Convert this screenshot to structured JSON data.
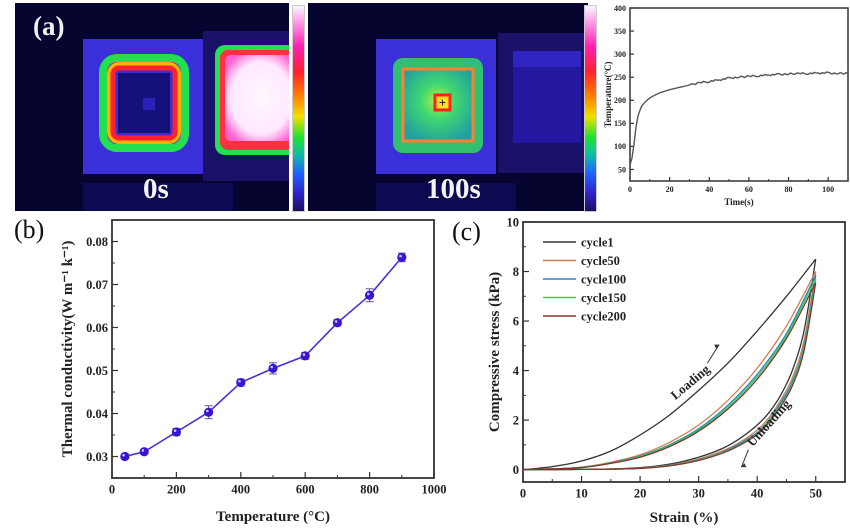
{
  "panel_a": {
    "label": "(a)",
    "images": [
      {
        "time_label": "0s"
      },
      {
        "time_label": "100s"
      }
    ],
    "colorbar_label": "Temperature(°C)"
  },
  "panel_b": {
    "label": "(b)"
  },
  "panel_c": {
    "label": "(c)"
  },
  "chart_data": [
    {
      "id": "temperature-time",
      "type": "line",
      "title": "",
      "xlabel": "Time(s)",
      "ylabel": "Temperature(°C)",
      "xlim": [
        0,
        110
      ],
      "ylim": [
        25,
        400
      ],
      "xticks": [
        0,
        20,
        40,
        60,
        80,
        100
      ],
      "yticks": [
        50,
        100,
        150,
        200,
        250,
        300,
        350,
        400
      ],
      "series": [
        {
          "name": "temperature",
          "color": "#555555",
          "x": [
            0,
            1,
            2,
            3,
            4,
            5,
            6,
            8,
            10,
            12,
            15,
            20,
            25,
            30,
            35,
            40,
            45,
            50,
            55,
            60,
            65,
            70,
            75,
            80,
            85,
            90,
            95,
            100,
            105,
            110
          ],
          "y": [
            60,
            75,
            105,
            140,
            165,
            178,
            188,
            198,
            205,
            210,
            216,
            223,
            228,
            233,
            238,
            241,
            244,
            248,
            250,
            252,
            253,
            255,
            256,
            257,
            258,
            258,
            259,
            259,
            258,
            259
          ]
        }
      ]
    },
    {
      "id": "thermal-conductivity",
      "type": "line",
      "title": "",
      "xlabel": "Temperature (°C)",
      "ylabel": "Thermal conductivity(W m⁻¹ k⁻¹)",
      "xlim": [
        0,
        1000
      ],
      "ylim": [
        0.025,
        0.085
      ],
      "xticks": [
        0,
        200,
        400,
        600,
        800,
        1000
      ],
      "yticks": [
        0.03,
        0.04,
        0.05,
        0.06,
        0.07,
        0.08
      ],
      "series": [
        {
          "name": "thermal conductivity",
          "color": "#4a2fd8",
          "x": [
            40,
            100,
            200,
            300,
            400,
            500,
            600,
            700,
            800,
            900
          ],
          "y": [
            0.03,
            0.0311,
            0.0357,
            0.0403,
            0.0472,
            0.0505,
            0.0534,
            0.0611,
            0.0675,
            0.0763
          ],
          "error": [
            0.0004,
            0.0005,
            0.0008,
            0.0015,
            0.0008,
            0.0013,
            0.0008,
            0.0007,
            0.0015,
            0.001
          ]
        }
      ]
    },
    {
      "id": "compressive-cycles",
      "type": "line",
      "title": "",
      "xlabel": "Strain (%)",
      "ylabel": "Compressive stress (kPa)",
      "xlim": [
        0,
        55
      ],
      "ylim": [
        -0.5,
        10
      ],
      "xticks": [
        0,
        10,
        20,
        30,
        40,
        50
      ],
      "yticks": [
        0,
        2,
        4,
        6,
        8,
        10
      ],
      "legend_position": "top-left",
      "annotations": [
        "Loading",
        "Unloading"
      ],
      "series": [
        {
          "name": "cycle1",
          "color": "#333333",
          "peak": 8.5,
          "loading": {
            "x": [
              0,
              5,
              10,
              15,
              20,
              25,
              30,
              35,
              40,
              45,
              50
            ],
            "y": [
              0,
              0.12,
              0.35,
              0.75,
              1.4,
              2.2,
              3.2,
              4.3,
              5.6,
              7.0,
              8.5
            ]
          },
          "unloading": {
            "x": [
              50,
              48,
              46,
              44,
              42,
              40,
              37,
              34,
              30,
              25,
              20,
              15,
              10,
              5,
              0
            ],
            "y": [
              8.5,
              5.6,
              4.0,
              3.0,
              2.3,
              1.8,
              1.25,
              0.85,
              0.5,
              0.22,
              0.08,
              0.03,
              0.01,
              0,
              0
            ]
          }
        },
        {
          "name": "cycle50",
          "color": "#d08050",
          "peak": 8.0,
          "loading": {
            "x": [
              0,
              5,
              10,
              15,
              20,
              25,
              30,
              35,
              40,
              45,
              50
            ],
            "y": [
              0,
              0.03,
              0.1,
              0.3,
              0.6,
              1.1,
              1.8,
              2.8,
              4.1,
              5.8,
              8.0
            ]
          },
          "unloading": {
            "x": [
              50,
              48,
              46,
              44,
              42,
              40,
              37,
              34,
              30,
              25,
              20,
              15,
              10,
              5,
              0
            ],
            "y": [
              8.0,
              5.2,
              3.7,
              2.8,
              2.1,
              1.6,
              1.1,
              0.75,
              0.43,
              0.18,
              0.06,
              0.02,
              0.01,
              0,
              0
            ]
          }
        },
        {
          "name": "cycle100",
          "color": "#2a7fc8",
          "peak": 7.85,
          "loading": {
            "x": [
              0,
              5,
              10,
              15,
              20,
              25,
              30,
              35,
              40,
              45,
              50
            ],
            "y": [
              0,
              0.03,
              0.09,
              0.27,
              0.55,
              1.0,
              1.65,
              2.6,
              3.85,
              5.5,
              7.85
            ]
          },
          "unloading": {
            "x": [
              50,
              48,
              46,
              44,
              42,
              40,
              37,
              34,
              30,
              25,
              20,
              15,
              10,
              5,
              0
            ],
            "y": [
              7.85,
              5.0,
              3.55,
              2.7,
              2.0,
              1.5,
              1.05,
              0.7,
              0.4,
              0.17,
              0.05,
              0.02,
              0.01,
              0,
              0
            ]
          }
        },
        {
          "name": "cycle150",
          "color": "#22d858",
          "peak": 7.7,
          "loading": {
            "x": [
              0,
              5,
              10,
              15,
              20,
              25,
              30,
              35,
              40,
              45,
              50
            ],
            "y": [
              0,
              0.03,
              0.09,
              0.26,
              0.53,
              0.97,
              1.6,
              2.52,
              3.75,
              5.4,
              7.7
            ]
          },
          "unloading": {
            "x": [
              50,
              48,
              46,
              44,
              42,
              40,
              37,
              34,
              30,
              25,
              20,
              15,
              10,
              5,
              0
            ],
            "y": [
              7.7,
              4.9,
              3.45,
              2.6,
              1.95,
              1.45,
              1.0,
              0.68,
              0.38,
              0.16,
              0.05,
              0.02,
              0.01,
              0,
              0
            ]
          }
        },
        {
          "name": "cycle200",
          "color": "#8b3030",
          "peak": 7.55,
          "loading": {
            "x": [
              0,
              5,
              10,
              15,
              20,
              25,
              30,
              35,
              40,
              45,
              50
            ],
            "y": [
              0,
              0.03,
              0.08,
              0.25,
              0.5,
              0.93,
              1.55,
              2.45,
              3.65,
              5.3,
              7.55
            ]
          },
          "unloading": {
            "x": [
              50,
              48,
              46,
              44,
              42,
              40,
              37,
              34,
              30,
              25,
              20,
              15,
              10,
              5,
              0
            ],
            "y": [
              7.55,
              4.8,
              3.38,
              2.55,
              1.9,
              1.42,
              0.98,
              0.66,
              0.37,
              0.15,
              0.05,
              0.02,
              0.01,
              0,
              0
            ]
          }
        }
      ]
    }
  ]
}
